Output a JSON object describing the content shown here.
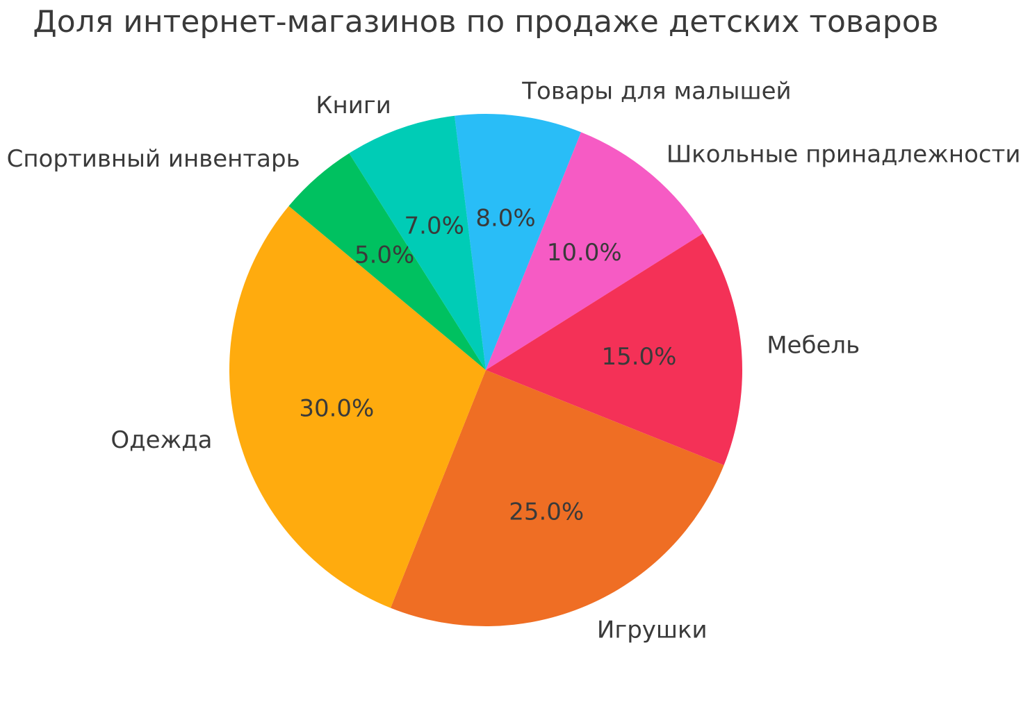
{
  "chart_data": {
    "type": "pie",
    "title": "Доля интернет-магазинов по продаже детских товаров",
    "slices": [
      {
        "label": "Товары для малышей",
        "value": 8,
        "pct_label": "8.0%",
        "color": "#29bdf7"
      },
      {
        "label": "Школьные принадлежности",
        "value": 10,
        "pct_label": "10.0%",
        "color": "#f65bc4"
      },
      {
        "label": "Мебель",
        "value": 15,
        "pct_label": "15.0%",
        "color": "#f43157"
      },
      {
        "label": "Игрушки",
        "value": 25,
        "pct_label": "25.0%",
        "color": "#ef6e24"
      },
      {
        "label": "Одежда",
        "value": 30,
        "pct_label": "30.0%",
        "color": "#ffab0e"
      },
      {
        "label": "Спортивный инвентарь",
        "value": 5,
        "pct_label": "5.0%",
        "color": "#00c160"
      },
      {
        "label": "Книги",
        "value": 7,
        "pct_label": "7.0%",
        "color": "#00ccb6"
      }
    ],
    "layout": {
      "start_angle_deg": 97,
      "clockwise": true,
      "label_distance": 1.1,
      "pct_distance": 0.6,
      "legend": "none",
      "grid": "off",
      "background_color": "#ffffff",
      "text_color": "#3a3a3a"
    }
  }
}
